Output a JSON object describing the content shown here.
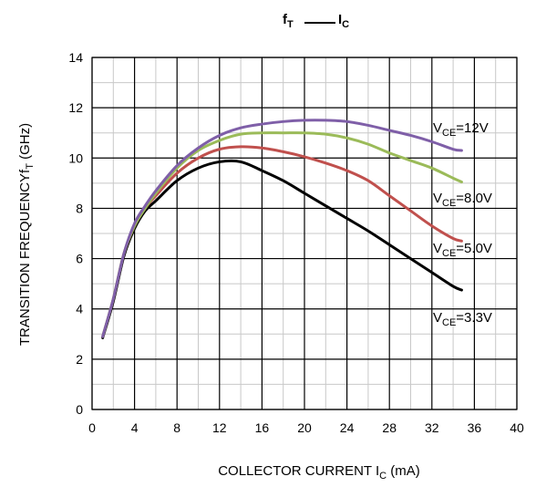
{
  "chart_data": {
    "type": "line",
    "title": {
      "left_main": "f",
      "left_sub": "T",
      "right_main": "I",
      "right_sub": "C"
    },
    "xlabel": {
      "main": "COLLECTOR CURRENT I",
      "sub": "C",
      "unit": " (mA)"
    },
    "ylabel": {
      "main": "TRANSITION FREQUENCYf",
      "sub": "T",
      "unit": " (GHz)"
    },
    "xlim": [
      0,
      40
    ],
    "ylim": [
      0,
      14
    ],
    "xticks": [
      0,
      4,
      8,
      12,
      16,
      20,
      24,
      28,
      32,
      36,
      40
    ],
    "yticks": [
      0,
      2,
      4,
      6,
      8,
      10,
      12,
      14
    ],
    "x_minor_step": 2,
    "y_minor_step": 1,
    "grid": true,
    "legend": "inline labels at right",
    "series": [
      {
        "name": "V_CE=12V",
        "label_main": "V",
        "label_sub": "CE",
        "label_rest": "=12V",
        "color": "#7f5fa8",
        "points": [
          [
            1,
            2.9
          ],
          [
            2,
            4.4
          ],
          [
            3,
            6.2
          ],
          [
            4,
            7.4
          ],
          [
            5,
            8.1
          ],
          [
            6,
            8.7
          ],
          [
            8,
            9.7
          ],
          [
            10,
            10.4
          ],
          [
            12,
            10.9
          ],
          [
            14,
            11.2
          ],
          [
            16,
            11.35
          ],
          [
            18,
            11.45
          ],
          [
            20,
            11.5
          ],
          [
            22,
            11.5
          ],
          [
            24,
            11.45
          ],
          [
            26,
            11.3
          ],
          [
            28,
            11.1
          ],
          [
            30,
            10.9
          ],
          [
            32,
            10.65
          ],
          [
            34,
            10.35
          ],
          [
            34.8,
            10.3
          ]
        ]
      },
      {
        "name": "V_CE=8.0V",
        "label_main": "V",
        "label_sub": "CE",
        "label_rest": "=8.0V",
        "color": "#9bbb59",
        "points": [
          [
            1,
            2.9
          ],
          [
            2,
            4.4
          ],
          [
            3,
            6.2
          ],
          [
            4,
            7.3
          ],
          [
            5,
            8.0
          ],
          [
            6,
            8.6
          ],
          [
            8,
            9.6
          ],
          [
            10,
            10.3
          ],
          [
            12,
            10.7
          ],
          [
            14,
            10.95
          ],
          [
            16,
            11.0
          ],
          [
            18,
            11.0
          ],
          [
            20,
            11.0
          ],
          [
            22,
            10.95
          ],
          [
            24,
            10.8
          ],
          [
            26,
            10.55
          ],
          [
            28,
            10.2
          ],
          [
            30,
            9.9
          ],
          [
            32,
            9.6
          ],
          [
            34,
            9.2
          ],
          [
            34.8,
            9.05
          ]
        ]
      },
      {
        "name": "V_CE=5.0V",
        "label_main": "V",
        "label_sub": "CE",
        "label_rest": "=5.0V",
        "color": "#c0504d",
        "points": [
          [
            1,
            2.9
          ],
          [
            2,
            4.4
          ],
          [
            3,
            6.2
          ],
          [
            4,
            7.3
          ],
          [
            5,
            8.0
          ],
          [
            6,
            8.5
          ],
          [
            8,
            9.4
          ],
          [
            10,
            10.0
          ],
          [
            12,
            10.35
          ],
          [
            14,
            10.45
          ],
          [
            16,
            10.4
          ],
          [
            18,
            10.25
          ],
          [
            20,
            10.05
          ],
          [
            22,
            9.8
          ],
          [
            24,
            9.5
          ],
          [
            26,
            9.1
          ],
          [
            28,
            8.5
          ],
          [
            30,
            7.9
          ],
          [
            32,
            7.3
          ],
          [
            34,
            6.8
          ],
          [
            34.8,
            6.7
          ]
        ]
      },
      {
        "name": "V_CE=3.3V",
        "label_main": "V",
        "label_sub": "CE",
        "label_rest": "=3.3V",
        "color": "#000000",
        "points": [
          [
            1,
            2.85
          ],
          [
            2,
            4.3
          ],
          [
            3,
            6.1
          ],
          [
            4,
            7.2
          ],
          [
            5,
            7.9
          ],
          [
            6,
            8.3
          ],
          [
            8,
            9.1
          ],
          [
            10,
            9.6
          ],
          [
            12,
            9.85
          ],
          [
            14,
            9.85
          ],
          [
            16,
            9.5
          ],
          [
            18,
            9.1
          ],
          [
            20,
            8.6
          ],
          [
            22,
            8.1
          ],
          [
            24,
            7.6
          ],
          [
            26,
            7.1
          ],
          [
            28,
            6.55
          ],
          [
            30,
            6.0
          ],
          [
            32,
            5.45
          ],
          [
            34,
            4.9
          ],
          [
            34.8,
            4.75
          ]
        ]
      }
    ]
  }
}
